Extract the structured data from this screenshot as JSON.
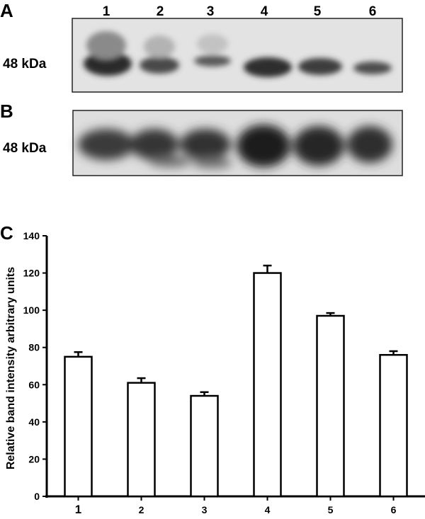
{
  "panels": {
    "a": {
      "letter": "A",
      "marker": "48 kDa",
      "lane_labels": [
        "1",
        "2",
        "3",
        "4",
        "5",
        "6"
      ]
    },
    "b": {
      "letter": "B",
      "marker": "48 kDa"
    },
    "c": {
      "letter": "C"
    }
  },
  "chart_data": {
    "type": "bar",
    "categories": [
      "1",
      "2",
      "3",
      "4",
      "5",
      "6"
    ],
    "values": [
      75,
      61,
      54,
      120,
      97,
      76
    ],
    "errors": [
      2.5,
      2.5,
      2,
      4,
      1.5,
      2
    ],
    "title": "",
    "xlabel": "",
    "ylabel": "Relative band intensity  arbitrary  units",
    "ylim": [
      0,
      140
    ],
    "yticks": [
      0,
      20,
      40,
      60,
      80,
      100,
      120,
      140
    ],
    "grid": false,
    "bar_fill": "#ffffff",
    "bar_stroke": "#000000"
  }
}
